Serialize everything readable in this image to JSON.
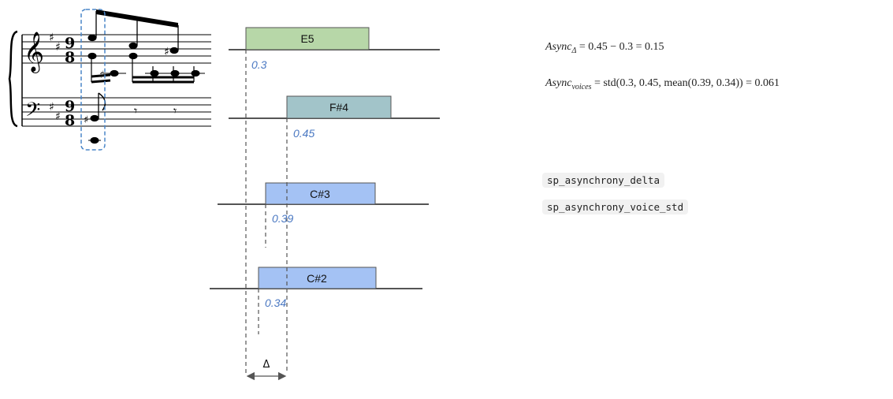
{
  "notes": [
    {
      "label": "E5",
      "onset": "0.3",
      "color": "#b7d7a8"
    },
    {
      "label": "F#4",
      "onset": "0.45",
      "color": "#a2c4c9"
    },
    {
      "label": "C#3",
      "onset": "0.39",
      "color": "#a4c2f4"
    },
    {
      "label": "C#2",
      "onset": "0.34",
      "color": "#a4c2f4"
    }
  ],
  "delta_symbol": "Δ",
  "formulas": {
    "delta": {
      "lhs_base": "Async",
      "lhs_sub": "Δ",
      "rhs": "= 0.45 − 0.3 = 0.15"
    },
    "voices": {
      "lhs_base": "Async",
      "lhs_sub": "voices",
      "rhs": "= std(0.3, 0.45, mean(0.39, 0.34)) = 0.061"
    }
  },
  "features": [
    "sp_asynchrony_delta",
    "sp_asynchrony_voice_std"
  ],
  "colors": {
    "selection_box": "#4a86c8",
    "accent_text": "#4a78c2"
  }
}
